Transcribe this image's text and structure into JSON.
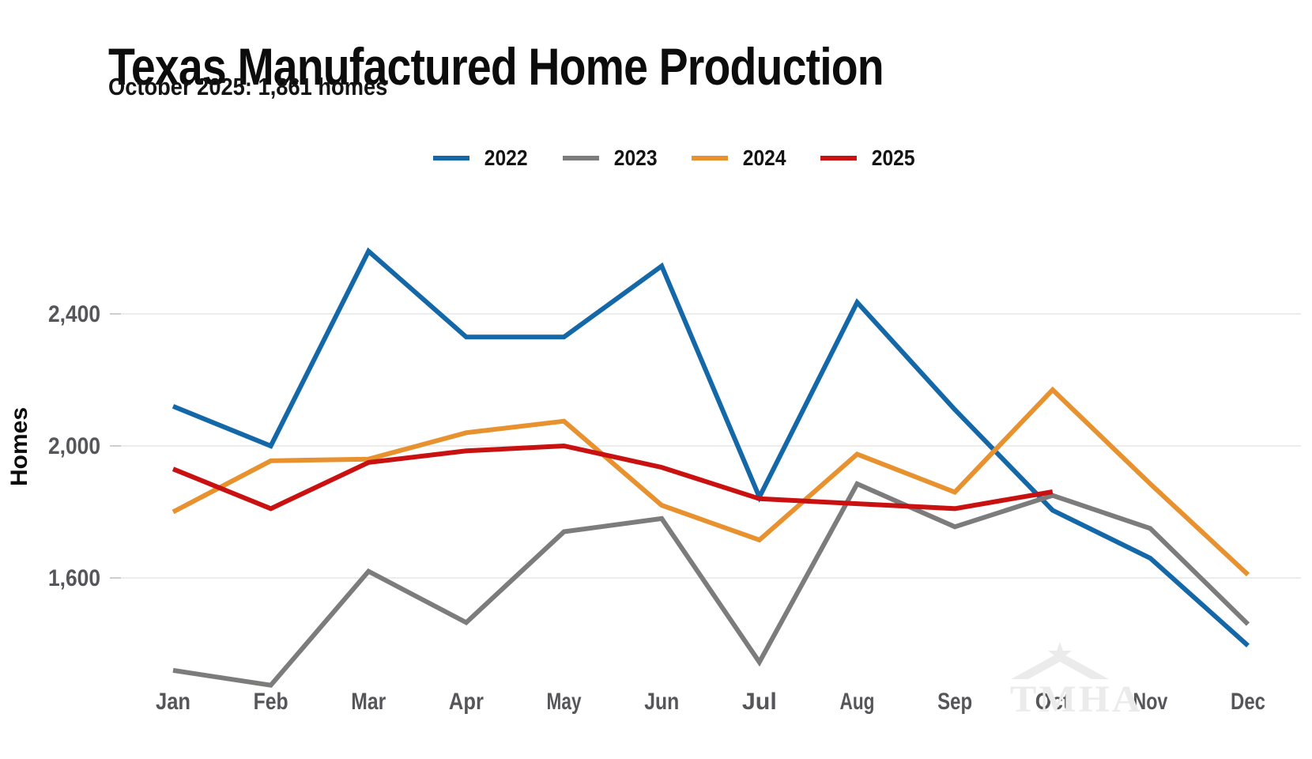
{
  "header": {
    "title": "Texas Manufactured Home Production",
    "subtitle": "October 2025: 1,861 homes"
  },
  "watermark": "TMHA",
  "chart_data": {
    "type": "line",
    "title": "Texas Manufactured Home Production",
    "subtitle": "October 2025: 1,861 homes",
    "xlabel": "",
    "ylabel": "Homes",
    "categories": [
      "Jan",
      "Feb",
      "Mar",
      "Apr",
      "May",
      "Jun",
      "Jul",
      "Aug",
      "Sep",
      "Oct",
      "Nov",
      "Dec"
    ],
    "yticks": [
      1600,
      2000,
      2400
    ],
    "ytick_labels": [
      "1,600",
      "2,000",
      "2,400"
    ],
    "ylim": [
      1230,
      2660
    ],
    "grid": "horizontal-only",
    "legend_position": "top-center",
    "colors": {
      "grid": "#ececec",
      "tick": "#cdcdcd",
      "axis_text": "#56565a",
      "watermark": "#ebebeb"
    },
    "series": [
      {
        "name": "2022",
        "color": "#1568a8",
        "values": [
          2120,
          2000,
          2590,
          2330,
          2330,
          2545,
          1845,
          2435,
          2110,
          1805,
          1660,
          1395
        ]
      },
      {
        "name": "2023",
        "color": "#7c7c7c",
        "values": [
          1320,
          1275,
          1620,
          1465,
          1740,
          1780,
          1345,
          1885,
          1755,
          1850,
          1750,
          1460
        ]
      },
      {
        "name": "2024",
        "color": "#e8912f",
        "values": [
          1800,
          1955,
          1960,
          2040,
          2075,
          1820,
          1715,
          1975,
          1860,
          2170,
          1885,
          1610
        ]
      },
      {
        "name": "2025",
        "color": "#ca1111",
        "values": [
          1930,
          1810,
          1950,
          1985,
          2000,
          1935,
          1840,
          1825,
          1810,
          1861
        ]
      }
    ]
  }
}
